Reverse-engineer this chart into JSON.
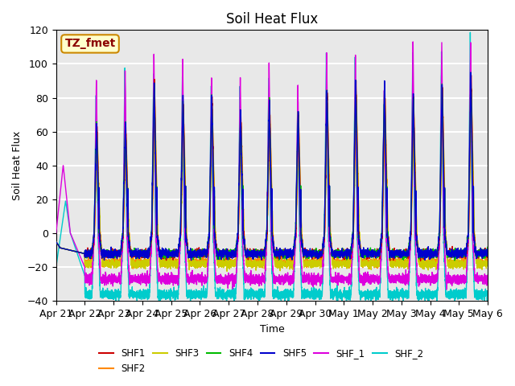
{
  "title": "Soil Heat Flux",
  "ylabel": "Soil Heat Flux",
  "xlabel": "Time",
  "annotation": "TZ_fmet",
  "ylim": [
    -40,
    120
  ],
  "series_colors": {
    "SHF1": "#cc0000",
    "SHF2": "#ff8800",
    "SHF3": "#cccc00",
    "SHF4": "#00bb00",
    "SHF5": "#0000cc",
    "SHF_1": "#dd00dd",
    "SHF_2": "#00cccc"
  },
  "x_tick_labels": [
    "Apr 21",
    "Apr 22",
    "Apr 23",
    "Apr 24",
    "Apr 25",
    "Apr 26",
    "Apr 27",
    "Apr 28",
    "Apr 29",
    "Apr 30",
    "May 1",
    "May 2",
    "May 3",
    "May 4",
    "May 5",
    "May 6"
  ],
  "bg_color": "#e8e8e8",
  "grid_color": "#ffffff",
  "annotation_bg": "#ffffcc",
  "annotation_border": "#cc8800",
  "n_days": 15,
  "pts_per_day": 288,
  "day_peak_amps": [
    40,
    65,
    66,
    90,
    80,
    82,
    72,
    78,
    72,
    85,
    92,
    88,
    82,
    88,
    95
  ],
  "shf_1_peak_amps": [
    41,
    90,
    98,
    106,
    103,
    95,
    94,
    102,
    87,
    108,
    108,
    86,
    113,
    112,
    116
  ],
  "shf_2_peak_amps": [
    19,
    84,
    98,
    97,
    92,
    90,
    88,
    93,
    68,
    108,
    107,
    76,
    108,
    109,
    119
  ],
  "shf_1_night_depth": -27,
  "shf_2_night_depth": -36,
  "shf_night_depth": -12,
  "shf2_night_depth": -17,
  "shf3_night_depth": -18
}
